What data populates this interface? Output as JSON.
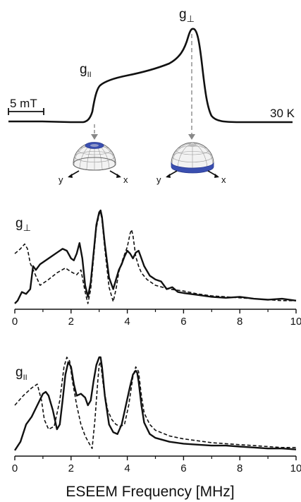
{
  "epr_panel": {
    "peak_perp_label": "g",
    "peak_perp_sub": "⊥",
    "peak_par_label": "g",
    "peak_par_sub": "II",
    "scale_bar_label": "5 mT",
    "temperature_label": "30 K",
    "sphere_axes": {
      "y": "y",
      "x": "x"
    },
    "sphere_band_color": "#3a4fb0"
  },
  "chart_data": [
    {
      "type": "line",
      "panel_label": "g",
      "panel_label_sub": "⊥",
      "xlabel": "",
      "xlim": [
        0,
        10
      ],
      "xticks": [
        0,
        2,
        4,
        6,
        8,
        10
      ],
      "series": [
        {
          "style": "solid",
          "x": [
            0,
            0.1,
            0.25,
            0.4,
            0.55,
            0.65,
            0.75,
            0.9,
            1.1,
            1.3,
            1.5,
            1.7,
            1.85,
            2.0,
            2.1,
            2.2,
            2.3,
            2.4,
            2.5,
            2.6,
            2.7,
            2.8,
            2.9,
            3.0,
            3.05,
            3.1,
            3.2,
            3.35,
            3.5,
            3.6,
            3.7,
            3.8,
            3.9,
            4.0,
            4.1,
            4.2,
            4.3,
            4.4,
            4.5,
            4.6,
            4.8,
            5.0,
            5.2,
            5.4,
            5.6,
            5.8,
            6.0,
            6.5,
            7.0,
            7.5,
            8.0,
            8.5,
            9.0,
            9.5,
            10.0
          ],
          "y": [
            0.03,
            0.06,
            0.15,
            0.13,
            0.18,
            0.42,
            0.38,
            0.44,
            0.48,
            0.52,
            0.56,
            0.6,
            0.58,
            0.5,
            0.48,
            0.55,
            0.66,
            0.5,
            0.22,
            0.1,
            0.25,
            0.55,
            0.85,
            0.98,
            1.0,
            0.93,
            0.65,
            0.3,
            0.18,
            0.28,
            0.38,
            0.44,
            0.52,
            0.58,
            0.55,
            0.5,
            0.56,
            0.58,
            0.5,
            0.42,
            0.32,
            0.28,
            0.26,
            0.18,
            0.2,
            0.15,
            0.14,
            0.12,
            0.1,
            0.09,
            0.1,
            0.08,
            0.07,
            0.08,
            0.06
          ]
        },
        {
          "style": "dashed",
          "x": [
            0,
            0.2,
            0.35,
            0.45,
            0.55,
            0.7,
            0.9,
            1.2,
            1.5,
            1.8,
            2.0,
            2.2,
            2.35,
            2.5,
            2.6,
            2.7,
            2.8,
            2.9,
            3.0,
            3.05,
            3.1,
            3.2,
            3.35,
            3.5,
            3.6,
            3.7,
            3.85,
            4.0,
            4.1,
            4.15,
            4.2,
            4.3,
            4.4,
            4.5,
            4.7,
            5.0,
            5.5,
            6.0,
            6.5,
            7.0,
            7.5,
            8.0,
            8.5,
            9.0,
            9.5,
            10.0
          ],
          "y": [
            0.55,
            0.6,
            0.65,
            0.6,
            0.45,
            0.35,
            0.22,
            0.28,
            0.35,
            0.4,
            0.36,
            0.33,
            0.38,
            0.15,
            0.03,
            0.18,
            0.5,
            0.82,
            0.96,
            0.98,
            0.9,
            0.6,
            0.2,
            0.05,
            0.18,
            0.36,
            0.5,
            0.62,
            0.76,
            0.8,
            0.74,
            0.52,
            0.42,
            0.35,
            0.28,
            0.22,
            0.18,
            0.16,
            0.13,
            0.11,
            0.1,
            0.09,
            0.08,
            0.07,
            0.06,
            0.06
          ]
        }
      ]
    },
    {
      "type": "line",
      "panel_label": "g",
      "panel_label_sub": "II",
      "xlabel": "ESEEM Frequency [MHz]",
      "xlim": [
        0,
        10
      ],
      "xticks": [
        0,
        2,
        4,
        6,
        8,
        10
      ],
      "series": [
        {
          "style": "solid",
          "x": [
            0,
            0.2,
            0.4,
            0.6,
            0.8,
            1.0,
            1.1,
            1.2,
            1.35,
            1.5,
            1.6,
            1.7,
            1.8,
            1.9,
            2.0,
            2.1,
            2.2,
            2.35,
            2.5,
            2.6,
            2.7,
            2.8,
            2.9,
            3.0,
            3.05,
            3.1,
            3.2,
            3.35,
            3.5,
            3.65,
            3.8,
            3.95,
            4.1,
            4.2,
            4.3,
            4.35,
            4.4,
            4.5,
            4.6,
            4.8,
            5.0,
            5.5,
            6.0,
            6.5,
            7.0,
            7.5,
            8.0,
            8.5,
            9.0,
            9.5,
            10.0
          ],
          "y": [
            0.03,
            0.12,
            0.3,
            0.38,
            0.5,
            0.62,
            0.64,
            0.6,
            0.45,
            0.25,
            0.3,
            0.55,
            0.82,
            0.95,
            0.9,
            0.72,
            0.6,
            0.62,
            0.58,
            0.5,
            0.55,
            0.75,
            0.92,
            1.0,
            1.0,
            0.9,
            0.6,
            0.3,
            0.22,
            0.2,
            0.3,
            0.5,
            0.7,
            0.82,
            0.86,
            0.84,
            0.75,
            0.5,
            0.32,
            0.2,
            0.16,
            0.12,
            0.1,
            0.09,
            0.08,
            0.08,
            0.07,
            0.06,
            0.05,
            0.05,
            0.04
          ]
        },
        {
          "style": "dashed",
          "x": [
            0,
            0.3,
            0.6,
            0.8,
            0.95,
            1.05,
            1.2,
            1.4,
            1.6,
            1.75,
            1.85,
            1.95,
            2.05,
            2.2,
            2.35,
            2.5,
            2.65,
            2.75,
            2.85,
            2.95,
            3.0,
            3.05,
            3.15,
            3.3,
            3.45,
            3.6,
            3.75,
            3.9,
            4.05,
            4.2,
            4.3,
            4.4,
            4.5,
            4.6,
            4.8,
            5.0,
            5.5,
            6.0,
            6.5,
            7.0,
            7.5,
            8.0,
            8.5,
            9.0,
            9.5,
            10.0
          ],
          "y": [
            0.5,
            0.6,
            0.68,
            0.72,
            0.55,
            0.35,
            0.25,
            0.28,
            0.55,
            0.9,
            1.0,
            0.96,
            0.75,
            0.5,
            0.3,
            0.18,
            0.1,
            0.05,
            0.35,
            0.75,
            0.92,
            0.95,
            0.7,
            0.45,
            0.35,
            0.3,
            0.28,
            0.3,
            0.5,
            0.8,
            0.9,
            0.85,
            0.6,
            0.42,
            0.3,
            0.24,
            0.18,
            0.15,
            0.13,
            0.11,
            0.1,
            0.09,
            0.08,
            0.07,
            0.06,
            0.06
          ]
        }
      ]
    }
  ]
}
